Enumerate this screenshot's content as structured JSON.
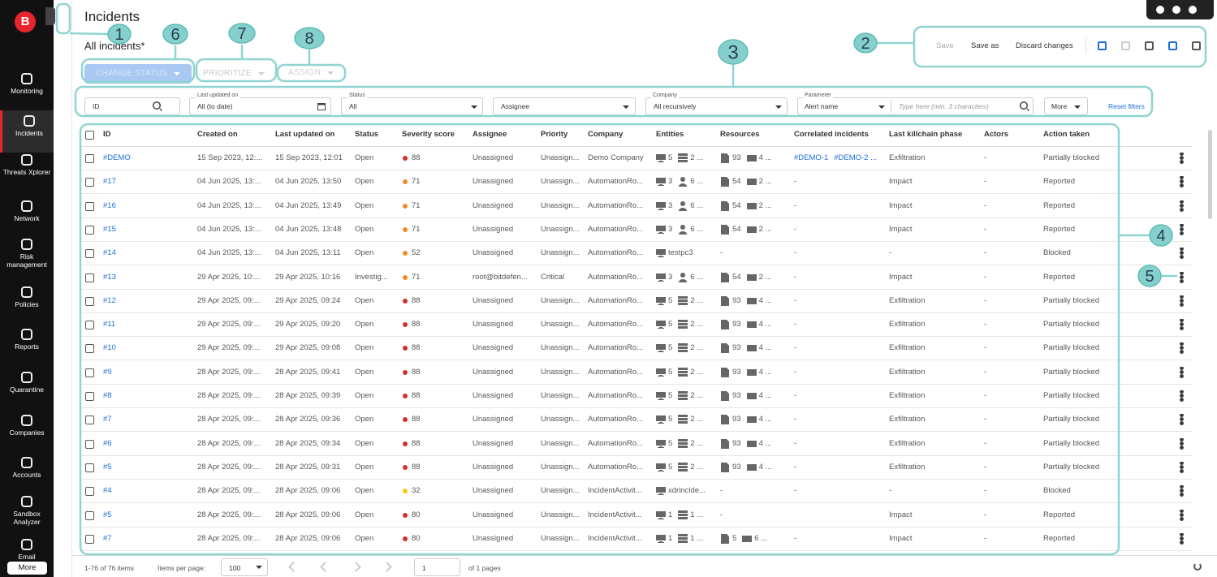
{
  "sidebar": {
    "logo": "B",
    "items": [
      "Monitoring",
      "Incidents",
      "Threats Xplorer",
      "Network",
      "Risk management",
      "Policies",
      "Reports",
      "Quarantine",
      "Companies",
      "Accounts",
      "Sandbox Analyzer",
      "Email"
    ],
    "active": 1,
    "more": "More"
  },
  "header": {
    "title": "Incidents",
    "view": "All incidents*"
  },
  "toolbar": {
    "change_status": "CHANGE STATUS",
    "prioritize": "PRIORITIZE",
    "assign": "ASSIGN",
    "save": "Save",
    "save_as": "Save as",
    "discard": "Discard changes"
  },
  "callouts": [
    "1",
    "2",
    "3",
    "4",
    "5",
    "6",
    "7",
    "8"
  ],
  "filters": {
    "id": "ID",
    "updated_label": "Last updated on",
    "updated_value": "All (to date)",
    "status_label": "Status",
    "status_value": "All",
    "assignee": "Assignee",
    "company_label": "Company",
    "company_value": "All recursively",
    "parameter_label": "Parameter",
    "parameter_value": "Alert name",
    "search_placeholder": "Type here (min. 3 characters)",
    "more": "More",
    "reset": "Reset filters"
  },
  "table": {
    "columns": [
      "ID",
      "Created on",
      "Last updated on",
      "Status",
      "Severity score",
      "Assignee",
      "Priority",
      "Company",
      "Entities",
      "Resources",
      "Correlated incidents",
      "Last killchain phase",
      "Actors",
      "Action taken"
    ],
    "rows": [
      {
        "id": "#DEMO",
        "created": "15 Sep 2023, 12:...",
        "updated": "15 Sep 2023, 12:01",
        "status": "Open",
        "score": 88,
        "dot": "#d0312d",
        "assignee": "Unassigned",
        "priority": "Unassign...",
        "company": "Demo Company",
        "entities": [
          {
            "icon": "pc",
            "text": "5"
          },
          {
            "icon": "server",
            "text": "2 ..."
          }
        ],
        "resources": [
          {
            "icon": "doc",
            "text": "93"
          },
          {
            "icon": "mail",
            "text": "4 ..."
          }
        ],
        "correlated": [
          "#DEMO-1",
          "#DEMO-2 ..."
        ],
        "killchain": "Exfiltration",
        "actors": "-",
        "action": "Partially blocked"
      },
      {
        "id": "#17",
        "created": "04 Jun 2025, 13:...",
        "updated": "04 Jun 2025, 13:50",
        "status": "Open",
        "score": 71,
        "dot": "#f08a2c",
        "assignee": "Unassigned",
        "priority": "Unassign...",
        "company": "AutomationRo...",
        "entities": [
          {
            "icon": "pc",
            "text": "3"
          },
          {
            "icon": "user",
            "text": "6 ..."
          }
        ],
        "resources": [
          {
            "icon": "doc",
            "text": "54"
          },
          {
            "icon": "mail",
            "text": "2 ..."
          }
        ],
        "correlated": "-",
        "killchain": "Impact",
        "actors": "-",
        "action": "Reported"
      },
      {
        "id": "#16",
        "created": "04 Jun 2025, 13:...",
        "updated": "04 Jun 2025, 13:49",
        "status": "Open",
        "score": 71,
        "dot": "#f08a2c",
        "assignee": "Unassigned",
        "priority": "Unassign...",
        "company": "AutomationRo...",
        "entities": [
          {
            "icon": "pc",
            "text": "3"
          },
          {
            "icon": "user",
            "text": "6 ..."
          }
        ],
        "resources": [
          {
            "icon": "doc",
            "text": "54"
          },
          {
            "icon": "mail",
            "text": "2 ..."
          }
        ],
        "correlated": "-",
        "killchain": "Impact",
        "actors": "-",
        "action": "Reported"
      },
      {
        "id": "#15",
        "created": "04 Jun 2025, 13:...",
        "updated": "04 Jun 2025, 13:48",
        "status": "Open",
        "score": 71,
        "dot": "#f08a2c",
        "assignee": "Unassigned",
        "priority": "Unassign...",
        "company": "AutomationRo...",
        "entities": [
          {
            "icon": "pc",
            "text": "3"
          },
          {
            "icon": "user",
            "text": "6 ..."
          }
        ],
        "resources": [
          {
            "icon": "doc",
            "text": "54"
          },
          {
            "icon": "mail",
            "text": "2 ..."
          }
        ],
        "correlated": "-",
        "killchain": "Impact",
        "actors": "-",
        "action": "Reported"
      },
      {
        "id": "#14",
        "created": "04 Jun 2025, 13:...",
        "updated": "04 Jun 2025, 13:11",
        "status": "Open",
        "score": 52,
        "dot": "#f08a2c",
        "assignee": "Unassigned",
        "priority": "Unassign...",
        "company": "AutomationRo...",
        "entities": [
          {
            "icon": "pc",
            "text": "testpc3"
          }
        ],
        "resources": "-",
        "correlated": "-",
        "killchain": "-",
        "actors": "-",
        "action": "Blocked"
      },
      {
        "id": "#13",
        "created": "29 Apr 2025, 10:...",
        "updated": "29 Apr 2025, 10:16",
        "status": "Investig...",
        "score": 71,
        "dot": "#f08a2c",
        "assignee": "root@bitdefen...",
        "priority": "Critical",
        "company": "AutomationRo...",
        "entities": [
          {
            "icon": "pc",
            "text": "3"
          },
          {
            "icon": "user",
            "text": "6 ..."
          }
        ],
        "resources": [
          {
            "icon": "doc",
            "text": "54"
          },
          {
            "icon": "mail",
            "text": "2 ..."
          }
        ],
        "correlated": "-",
        "killchain": "Impact",
        "actors": "-",
        "action": "Reported"
      },
      {
        "id": "#12",
        "created": "29 Apr 2025, 09:...",
        "updated": "29 Apr 2025, 09:24",
        "status": "Open",
        "score": 88,
        "dot": "#d0312d",
        "assignee": "Unassigned",
        "priority": "Unassign...",
        "company": "AutomationRo...",
        "entities": [
          {
            "icon": "pc",
            "text": "5"
          },
          {
            "icon": "server",
            "text": "2 ..."
          }
        ],
        "resources": [
          {
            "icon": "doc",
            "text": "93"
          },
          {
            "icon": "mail",
            "text": "4 ..."
          }
        ],
        "correlated": "-",
        "killchain": "Exfiltration",
        "actors": "-",
        "action": "Partially blocked"
      },
      {
        "id": "#11",
        "created": "29 Apr 2025, 09:...",
        "updated": "29 Apr 2025, 09:20",
        "status": "Open",
        "score": 88,
        "dot": "#d0312d",
        "assignee": "Unassigned",
        "priority": "Unassign...",
        "company": "AutomationRo...",
        "entities": [
          {
            "icon": "pc",
            "text": "5"
          },
          {
            "icon": "server",
            "text": "2 ..."
          }
        ],
        "resources": [
          {
            "icon": "doc",
            "text": "93"
          },
          {
            "icon": "mail",
            "text": "4 ..."
          }
        ],
        "correlated": "-",
        "killchain": "Exfiltration",
        "actors": "-",
        "action": "Partially blocked"
      },
      {
        "id": "#10",
        "created": "29 Apr 2025, 09:...",
        "updated": "29 Apr 2025, 09:08",
        "status": "Open",
        "score": 88,
        "dot": "#d0312d",
        "assignee": "Unassigned",
        "priority": "Unassign...",
        "company": "AutomationRo...",
        "entities": [
          {
            "icon": "pc",
            "text": "5"
          },
          {
            "icon": "server",
            "text": "2 ..."
          }
        ],
        "resources": [
          {
            "icon": "doc",
            "text": "93"
          },
          {
            "icon": "mail",
            "text": "4 ..."
          }
        ],
        "correlated": "-",
        "killchain": "Exfiltration",
        "actors": "-",
        "action": "Partially blocked"
      },
      {
        "id": "#9",
        "created": "28 Apr 2025, 09:...",
        "updated": "28 Apr 2025, 09:41",
        "status": "Open",
        "score": 88,
        "dot": "#d0312d",
        "assignee": "Unassigned",
        "priority": "Unassign...",
        "company": "AutomationRo...",
        "entities": [
          {
            "icon": "pc",
            "text": "5"
          },
          {
            "icon": "server",
            "text": "2 ..."
          }
        ],
        "resources": [
          {
            "icon": "doc",
            "text": "93"
          },
          {
            "icon": "mail",
            "text": "4 ..."
          }
        ],
        "correlated": "-",
        "killchain": "Exfiltration",
        "actors": "-",
        "action": "Partially blocked"
      },
      {
        "id": "#8",
        "created": "28 Apr 2025, 09:...",
        "updated": "28 Apr 2025, 09:39",
        "status": "Open",
        "score": 88,
        "dot": "#d0312d",
        "assignee": "Unassigned",
        "priority": "Unassign...",
        "company": "AutomationRo...",
        "entities": [
          {
            "icon": "pc",
            "text": "5"
          },
          {
            "icon": "server",
            "text": "2 ..."
          }
        ],
        "resources": [
          {
            "icon": "doc",
            "text": "93"
          },
          {
            "icon": "mail",
            "text": "4 ..."
          }
        ],
        "correlated": "-",
        "killchain": "Exfiltration",
        "actors": "-",
        "action": "Partially blocked"
      },
      {
        "id": "#7",
        "created": "28 Apr 2025, 09:...",
        "updated": "28 Apr 2025, 09:36",
        "status": "Open",
        "score": 88,
        "dot": "#d0312d",
        "assignee": "Unassigned",
        "priority": "Unassign...",
        "company": "AutomationRo...",
        "entities": [
          {
            "icon": "pc",
            "text": "5"
          },
          {
            "icon": "server",
            "text": "2 ..."
          }
        ],
        "resources": [
          {
            "icon": "doc",
            "text": "93"
          },
          {
            "icon": "mail",
            "text": "4 ..."
          }
        ],
        "correlated": "-",
        "killchain": "Exfiltration",
        "actors": "-",
        "action": "Partially blocked"
      },
      {
        "id": "#6",
        "created": "28 Apr 2025, 09:...",
        "updated": "28 Apr 2025, 09:34",
        "status": "Open",
        "score": 88,
        "dot": "#d0312d",
        "assignee": "Unassigned",
        "priority": "Unassign...",
        "company": "AutomationRo...",
        "entities": [
          {
            "icon": "pc",
            "text": "5"
          },
          {
            "icon": "server",
            "text": "2 ..."
          }
        ],
        "resources": [
          {
            "icon": "doc",
            "text": "93"
          },
          {
            "icon": "mail",
            "text": "4 ..."
          }
        ],
        "correlated": "-",
        "killchain": "Exfiltration",
        "actors": "-",
        "action": "Partially blocked"
      },
      {
        "id": "#5",
        "created": "28 Apr 2025, 09:...",
        "updated": "28 Apr 2025, 09:31",
        "status": "Open",
        "score": 88,
        "dot": "#d0312d",
        "assignee": "Unassigned",
        "priority": "Unassign...",
        "company": "AutomationRo...",
        "entities": [
          {
            "icon": "pc",
            "text": "5"
          },
          {
            "icon": "server",
            "text": "2 ..."
          }
        ],
        "resources": [
          {
            "icon": "doc",
            "text": "93"
          },
          {
            "icon": "mail",
            "text": "4 ..."
          }
        ],
        "correlated": "-",
        "killchain": "Exfiltration",
        "actors": "-",
        "action": "Partially blocked"
      },
      {
        "id": "#4",
        "created": "28 Apr 2025, 09:...",
        "updated": "28 Apr 2025, 09:06",
        "status": "Open",
        "score": 32,
        "dot": "#f2c81a",
        "assignee": "Unassigned",
        "priority": "Unassign...",
        "company": "IncidentActivit...",
        "entities": [
          {
            "icon": "pc",
            "text": "xdrincide..."
          }
        ],
        "resources": "-",
        "correlated": "-",
        "killchain": "-",
        "actors": "-",
        "action": "Blocked"
      },
      {
        "id": "#5",
        "created": "28 Apr 2025, 09:...",
        "updated": "28 Apr 2025, 09:06",
        "status": "Open",
        "score": 80,
        "dot": "#d0312d",
        "assignee": "Unassigned",
        "priority": "Unassign...",
        "company": "IncidentActivit...",
        "entities": [
          {
            "icon": "pc",
            "text": "1"
          },
          {
            "icon": "server",
            "text": "1 ..."
          }
        ],
        "resources": "-",
        "correlated": null,
        "killchain": "Impact",
        "actors": "-",
        "action": "Reported"
      },
      {
        "id": "#7",
        "created": "28 Apr 2025, 09:...",
        "updated": "28 Apr 2025, 09:06",
        "status": "Open",
        "score": 80,
        "dot": "#d0312d",
        "assignee": "Unassigned",
        "priority": "Unassign...",
        "company": "IncidentActivit...",
        "entities": [
          {
            "icon": "pc",
            "text": "1"
          },
          {
            "icon": "server",
            "text": "1 ..."
          }
        ],
        "resources": [
          {
            "icon": "doc",
            "text": "5"
          },
          {
            "icon": "mail",
            "text": "6 ..."
          }
        ],
        "correlated": "-",
        "killchain": "Impact",
        "actors": "-",
        "action": "Reported"
      }
    ]
  },
  "footer": {
    "count": "1-76 of 76 items",
    "per_page_label": "Items per page:",
    "per_page": "100",
    "page": "1",
    "pages": "of 1 pages"
  }
}
